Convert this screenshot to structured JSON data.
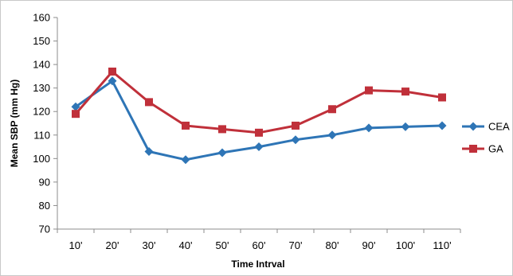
{
  "chart_data": {
    "type": "line",
    "title": "",
    "xlabel": "Time Intrval",
    "ylabel": "Mean SBP (mm Hg)",
    "categories": [
      "10'",
      "20'",
      "30'",
      "40'",
      "50'",
      "60'",
      "70'",
      "80'",
      "90'",
      "100'",
      "110'"
    ],
    "ylim": [
      70,
      160
    ],
    "yticks": [
      70,
      80,
      90,
      100,
      110,
      120,
      130,
      140,
      150,
      160
    ],
    "grid": false,
    "legend_position": "right",
    "series": [
      {
        "name": "CEA",
        "color": "#2e75b6",
        "marker": "diamond",
        "values": [
          122,
          133,
          103,
          99.5,
          102.5,
          105,
          108,
          110,
          113,
          113.5,
          114
        ]
      },
      {
        "name": "GA",
        "color": "#c0303a",
        "marker": "square",
        "values": [
          119,
          137,
          124,
          114,
          112.5,
          111,
          114,
          121,
          129,
          128.5,
          126
        ]
      }
    ]
  }
}
